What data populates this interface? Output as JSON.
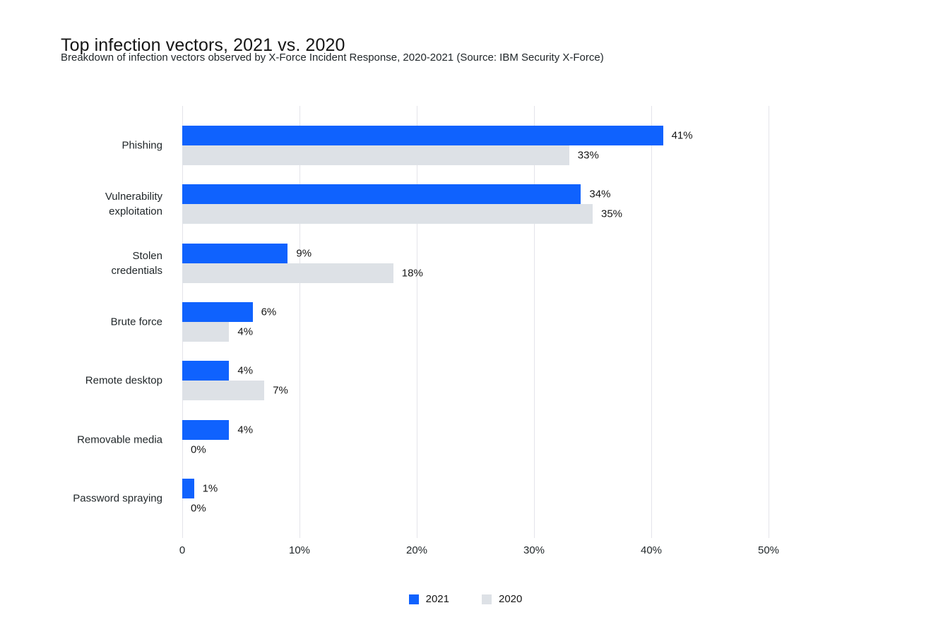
{
  "page": {
    "title": "Top infection vectors, 2021 vs. 2020",
    "subtitle": "Breakdown of infection vectors observed by X-Force Incident Response, 2020-2021 (Source: IBM Security X-Force)"
  },
  "colors": {
    "accent_blue": "#0f62fe",
    "bar_gray": "#dde1e6",
    "grid": "#e4e4ea",
    "text_dark": "#161616",
    "text_body": "#21272a"
  },
  "chart_data": {
    "type": "bar",
    "orientation": "horizontal",
    "title": "Top infection vectors, 2021 vs. 2020",
    "subtitle": "Breakdown of infection vectors observed by X-Force Incident Response, 2020-2021 (Source: IBM Security X-Force)",
    "categories": [
      "Phishing",
      "Vulnerability\nexploitation",
      "Stolen\ncredentials",
      "Brute force",
      "Remote desktop",
      "Removable media",
      "Password spraying"
    ],
    "series": [
      {
        "name": "2021",
        "color": "#0f62fe",
        "values": [
          41,
          34,
          9,
          6,
          4,
          4,
          1
        ],
        "labels": [
          "41%",
          "34%",
          "9%",
          "6%",
          "4%",
          "4%",
          "1%"
        ]
      },
      {
        "name": "2020",
        "color": "#dde1e6",
        "values": [
          33,
          35,
          18,
          4,
          7,
          0,
          0
        ],
        "labels": [
          "33%",
          "35%",
          "18%",
          "4%",
          "7%",
          "0%",
          "0%"
        ]
      }
    ],
    "xlabel": "",
    "ylabel": "",
    "xlim": [
      0,
      50
    ],
    "x_ticks": [
      "0",
      "10%",
      "20%",
      "30%",
      "40%",
      "50%"
    ],
    "x_tick_values": [
      0,
      10,
      20,
      30,
      40,
      50
    ],
    "grid": "vertical",
    "legend_position": "bottom"
  }
}
